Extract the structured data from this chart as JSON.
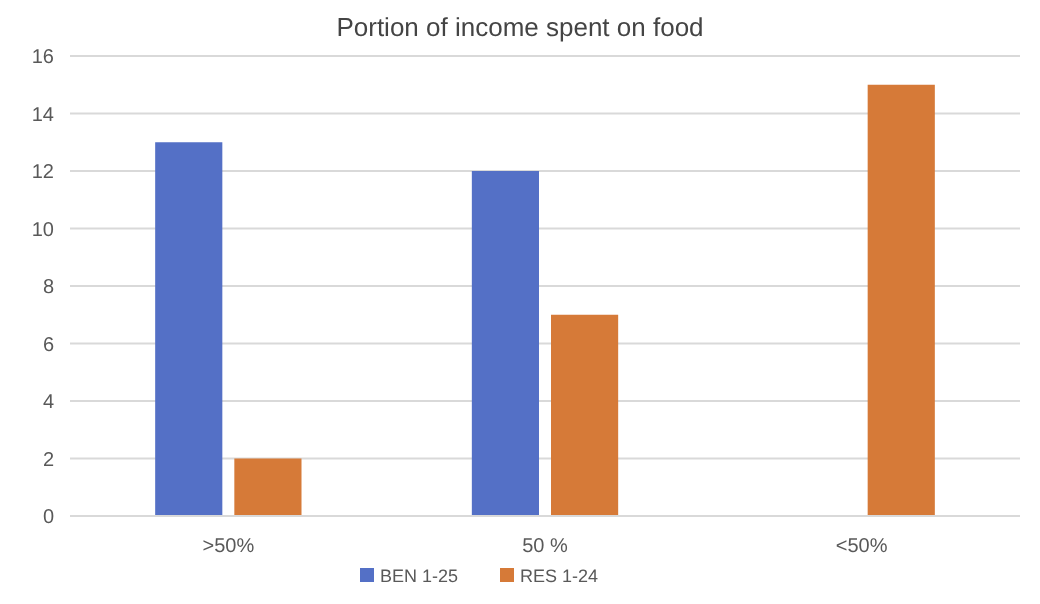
{
  "chart_data": {
    "type": "bar",
    "title": "Portion of income spent on food",
    "categories": [
      ">50%",
      "50 %",
      "<50%"
    ],
    "series": [
      {
        "name": "BEN 1-25",
        "color": "#5470c6",
        "values": [
          13,
          12,
          0
        ]
      },
      {
        "name": "RES 1-24",
        "color": "#d67a38",
        "values": [
          2,
          7,
          15
        ]
      }
    ],
    "ylim": [
      0,
      16
    ],
    "yticks": [
      0,
      2,
      4,
      6,
      8,
      10,
      12,
      14,
      16
    ],
    "grid": "y",
    "legend": "bottom"
  }
}
